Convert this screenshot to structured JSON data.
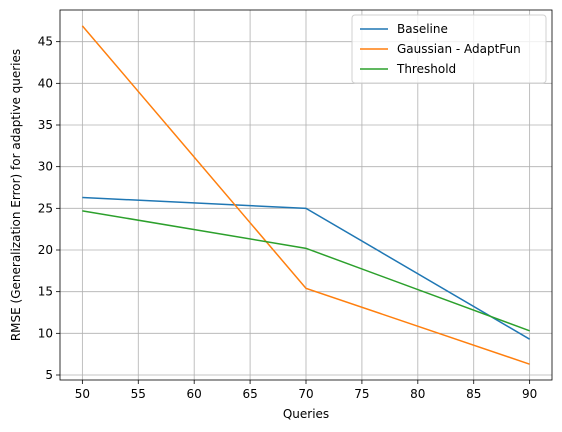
{
  "chart_data": {
    "type": "line",
    "xlabel": "Queries",
    "ylabel": "RMSE (Generalization Error) for adaptive queries",
    "xlim": [
      48,
      92
    ],
    "ylim": [
      4.4,
      48.8
    ],
    "xticks": [
      50,
      55,
      60,
      65,
      70,
      75,
      80,
      85,
      90
    ],
    "yticks": [
      5,
      10,
      15,
      20,
      25,
      30,
      35,
      40,
      45
    ],
    "grid": true,
    "legend_position": "top-right",
    "series": [
      {
        "name": "Baseline",
        "color": "#1f77b4",
        "x": [
          50,
          70,
          90
        ],
        "y": [
          26.3,
          25.0,
          9.3
        ]
      },
      {
        "name": "Gaussian - AdaptFun",
        "color": "#ff7f0e",
        "x": [
          50,
          70,
          90
        ],
        "y": [
          46.9,
          15.4,
          6.3
        ]
      },
      {
        "name": "Threshold",
        "color": "#2ca02c",
        "x": [
          50,
          70,
          90
        ],
        "y": [
          24.7,
          20.2,
          10.3
        ]
      }
    ]
  }
}
